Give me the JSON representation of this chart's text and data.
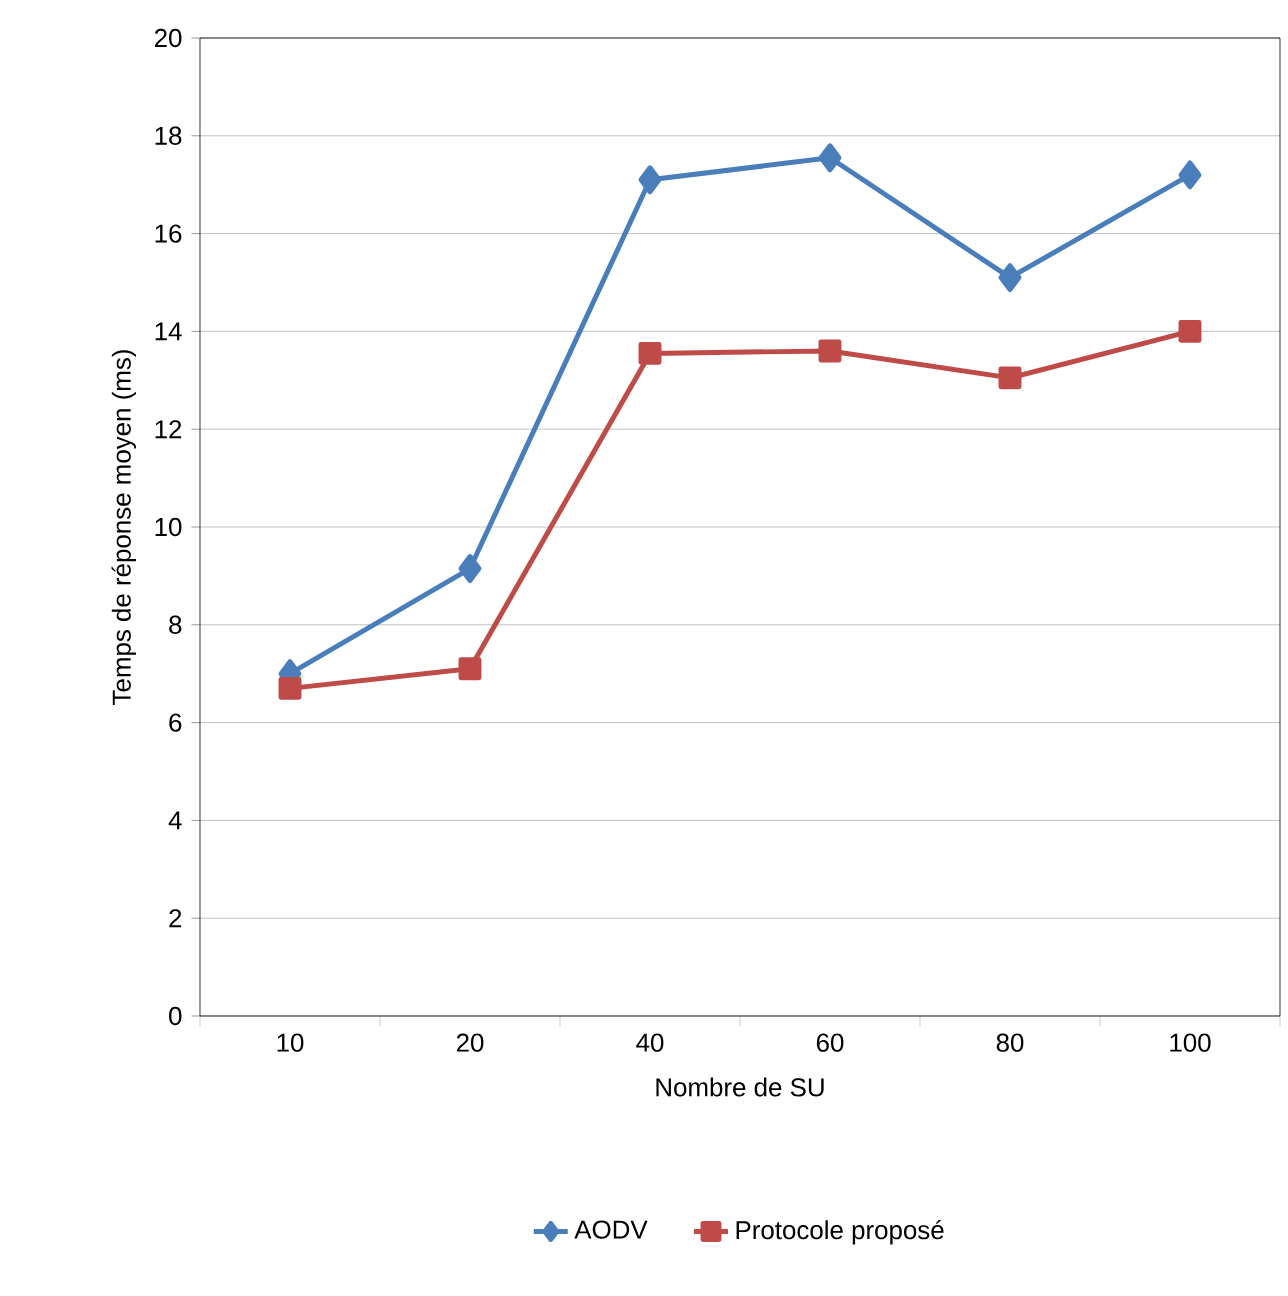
{
  "chart_data": {
    "type": "line",
    "xlabel": "Nombre de SU",
    "ylabel": "Temps de réponse moyen (ms)",
    "categories": [
      "10",
      "20",
      "40",
      "60",
      "80",
      "100"
    ],
    "series": [
      {
        "name": "AODV",
        "color": "#4a7ebb",
        "marker": "diamond",
        "values": [
          7.0,
          9.15,
          17.1,
          17.55,
          15.1,
          17.2
        ]
      },
      {
        "name": "Protocole proposé",
        "color": "#be4b48",
        "marker": "square",
        "values": [
          6.7,
          7.1,
          13.55,
          13.6,
          13.05,
          14.0
        ]
      }
    ],
    "ylim": [
      0,
      20
    ],
    "yticks": [
      0,
      2,
      4,
      6,
      8,
      10,
      12,
      14,
      16,
      18,
      20
    ],
    "grid": "y",
    "legend": "bottom"
  }
}
